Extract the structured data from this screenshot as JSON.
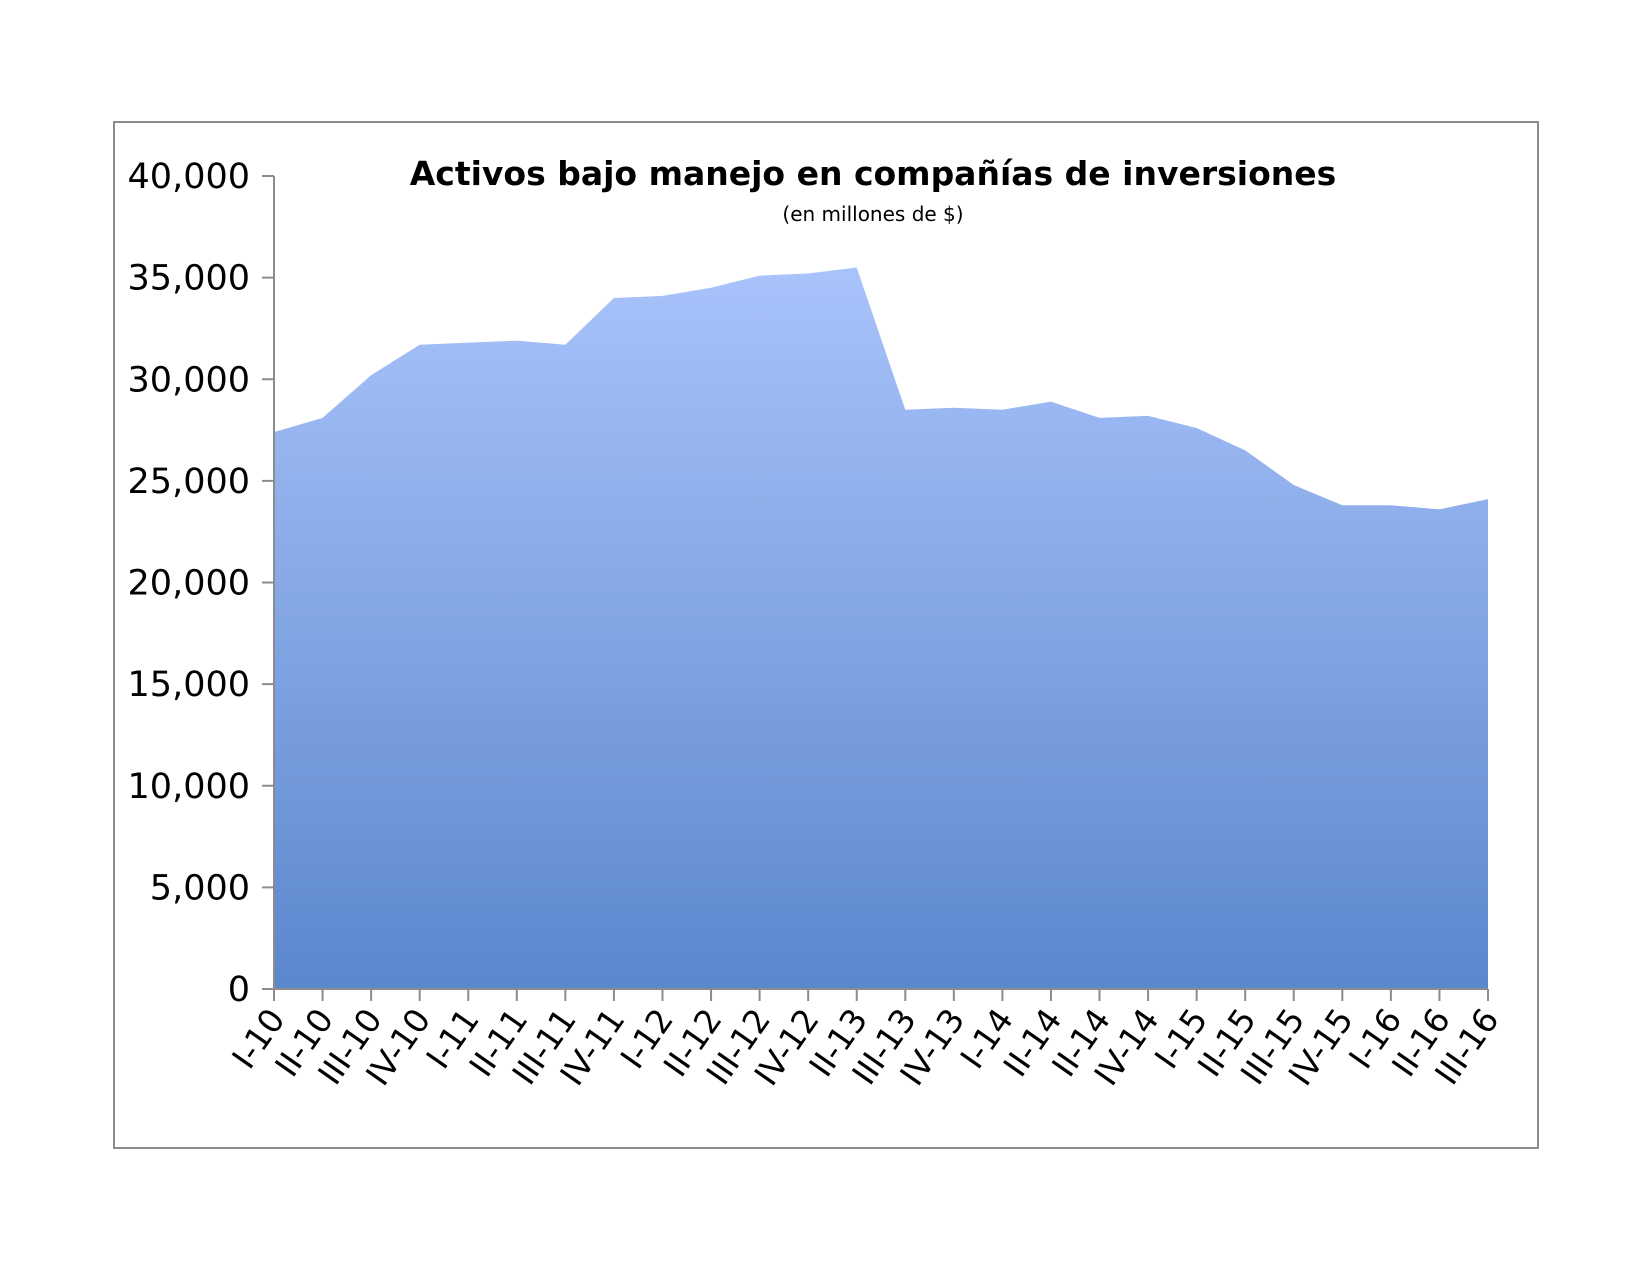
{
  "chart_data": {
    "type": "area",
    "title": "Activos bajo manejo en compañías de inversiones",
    "subtitle": "(en millones de $)",
    "xlabel": "",
    "ylabel": "",
    "ylim": [
      0,
      40000
    ],
    "yticks": [
      0,
      5000,
      10000,
      15000,
      20000,
      25000,
      30000,
      35000,
      40000
    ],
    "ytick_labels": [
      "0",
      "5,000",
      "10,000",
      "15,000",
      "20,000",
      "25,000",
      "30,000",
      "35,000",
      "40,000"
    ],
    "categories": [
      "I-10",
      "II-10",
      "III-10",
      "IV-10",
      "I-11",
      "II-11",
      "III-11",
      "IV-11",
      "I-12",
      "II-12",
      "III-12",
      "IV-12",
      "II-13",
      "III-13",
      "IV-13",
      "I-14",
      "II-14",
      "II-14",
      "IV-14",
      "I-15",
      "II-15",
      "III-15",
      "IV-15",
      "I-16",
      "II-16",
      "III-16"
    ],
    "values": [
      27400,
      28100,
      30200,
      31700,
      31800,
      31900,
      31700,
      34000,
      34100,
      34500,
      35100,
      35200,
      35500,
      28500,
      28600,
      28500,
      28900,
      28100,
      28200,
      27600,
      26500,
      24800,
      23800,
      23800,
      23600,
      24100
    ],
    "grid": false,
    "legend": "none",
    "fill_top_color": "#a9c3fb",
    "fill_bottom_color": "#5b87cd",
    "axis_color": "#8c8c8c"
  }
}
